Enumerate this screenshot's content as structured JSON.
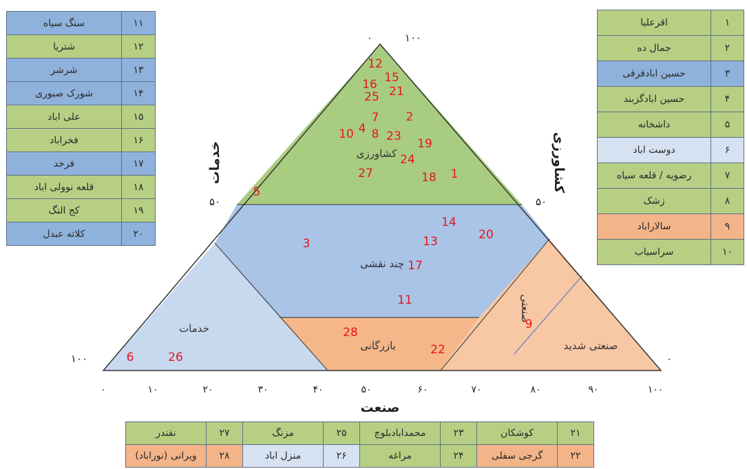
{
  "left_table": [
    {
      "num": "۱۱",
      "name": "سنگ سیاه",
      "color": "#8fb2dc"
    },
    {
      "num": "۱۲",
      "name": "شتریا",
      "color": "#b7cf83"
    },
    {
      "num": "۱۳",
      "name": "شرشر",
      "color": "#8fb2dc"
    },
    {
      "num": "۱۴",
      "name": "شورک صبوری",
      "color": "#8fb2dc"
    },
    {
      "num": "۱۵",
      "name": "علی اباد",
      "color": "#b7cf83"
    },
    {
      "num": "۱۶",
      "name": "فخراباد",
      "color": "#b7cf83"
    },
    {
      "num": "۱۷",
      "name": "فرخد",
      "color": "#8fb2dc"
    },
    {
      "num": "۱۸",
      "name": "قلعه نوولی اباد",
      "color": "#b7cf83"
    },
    {
      "num": "۱۹",
      "name": "کج النگ",
      "color": "#b7cf83"
    },
    {
      "num": "۲۰",
      "name": "کلاته عبدل",
      "color": "#8fb2dc"
    }
  ],
  "right_table": [
    {
      "num": "۱",
      "name": "اقرعلیا",
      "color": "#b7cf83"
    },
    {
      "num": "۲",
      "name": "جمال ده",
      "color": "#b7cf83"
    },
    {
      "num": "۳",
      "name": "حسین ابادقرقی",
      "color": "#8fb2dc"
    },
    {
      "num": "۴",
      "name": "حسین ابادگزبند",
      "color": "#b7cf83"
    },
    {
      "num": "۵",
      "name": "داشخانه",
      "color": "#b7cf83"
    },
    {
      "num": "۶",
      "name": "دوست اباد",
      "color": "#d6e2f1"
    },
    {
      "num": "۷",
      "name": "رضویه / قلعه سیاه",
      "color": "#b7cf83"
    },
    {
      "num": "۸",
      "name": "زشک",
      "color": "#b7cf83"
    },
    {
      "num": "۹",
      "name": "سالاراباد",
      "color": "#f3b489"
    },
    {
      "num": "۱۰",
      "name": "سراسیاب",
      "color": "#b7cf83"
    }
  ],
  "bottom_table": [
    [
      {
        "num": "۲۱",
        "name": "کوشکان",
        "numColor": "#b7cf83",
        "nameColor": "#b7cf83"
      },
      {
        "num": "۲۳",
        "name": "محمدابادبلوچ",
        "numColor": "#b7cf83",
        "nameColor": "#b7cf83"
      },
      {
        "num": "۲۵",
        "name": "مزنگ",
        "numColor": "#b7cf83",
        "nameColor": "#b7cf83"
      },
      {
        "num": "۲۷",
        "name": "نقندر",
        "numColor": "#b7cf83",
        "nameColor": "#b7cf83"
      }
    ],
    [
      {
        "num": "۲۲",
        "name": "گرجی سفلی",
        "numColor": "#f3b489",
        "nameColor": "#f3b489"
      },
      {
        "num": "۲۴",
        "name": "مراغه",
        "numColor": "#b7cf83",
        "nameColor": "#b7cf83"
      },
      {
        "num": "۲۶",
        "name": "منزل اباد",
        "numColor": "#d6e2f1",
        "nameColor": "#d6e2f1"
      },
      {
        "num": "۲۸",
        "name": "ویرانی (نوراباد)",
        "numColor": "#f3b489",
        "nameColor": "#f3b489"
      }
    ]
  ],
  "triangle": {
    "zones": [
      {
        "id": "agriculture",
        "label": "کشاورزی",
        "color": "#a9cd80"
      },
      {
        "id": "multi",
        "label": "چند نقشی",
        "color": "#a9c4e6"
      },
      {
        "id": "services",
        "label": "خدمات",
        "color": "#c6d9ef"
      },
      {
        "id": "commerce",
        "label": "بازرگانی",
        "color": "#f5b78a"
      },
      {
        "id": "industry",
        "label": "صنعتی",
        "color": "#f8c7a4"
      },
      {
        "id": "heavy-industry",
        "label": "صنعتی شدید",
        "color": "#f8c7a4"
      }
    ],
    "axis_titles": {
      "left": "خدمات",
      "right": "کشاورزی",
      "bottom": "صنعت"
    },
    "bottom_ticks": [
      "۰",
      "۱۰",
      "۲۰",
      "۳۰",
      "۴۰",
      "۵۰",
      "۶۰",
      "۷۰",
      "۸۰",
      "۹۰",
      "۱۰۰"
    ],
    "apex_labels": {
      "left": "۰",
      "right": "۱۰۰"
    },
    "left_side_labels": {
      "mid": "۵۰",
      "bottom": "۱۰۰"
    },
    "right_side_labels": {
      "mid": "۵۰",
      "bottom": "۰"
    },
    "point_color": "#e8141b",
    "points": [
      {
        "n": "12"
      },
      {
        "n": "15"
      },
      {
        "n": "16"
      },
      {
        "n": "21"
      },
      {
        "n": "25"
      },
      {
        "n": "7"
      },
      {
        "n": "2"
      },
      {
        "n": "4"
      },
      {
        "n": "10"
      },
      {
        "n": "8"
      },
      {
        "n": "23"
      },
      {
        "n": "19"
      },
      {
        "n": "24"
      },
      {
        "n": "27"
      },
      {
        "n": "18"
      },
      {
        "n": "1"
      },
      {
        "n": "5"
      },
      {
        "n": "14"
      },
      {
        "n": "20"
      },
      {
        "n": "3"
      },
      {
        "n": "13"
      },
      {
        "n": "17"
      },
      {
        "n": "11"
      },
      {
        "n": "28"
      },
      {
        "n": "22"
      },
      {
        "n": "9"
      },
      {
        "n": "6"
      },
      {
        "n": "26"
      }
    ]
  }
}
